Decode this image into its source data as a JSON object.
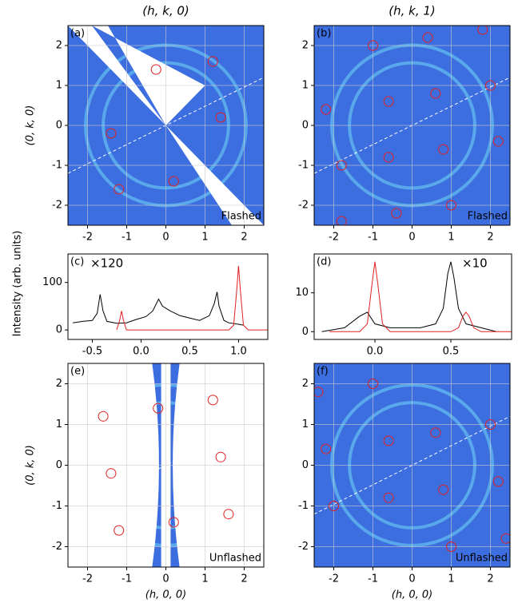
{
  "chart_data": [
    {
      "type": "map",
      "title": "(h, k, 0)",
      "ylabel": "(0, k, 0)",
      "panel": "(a)",
      "annotation": "Flashed",
      "xlim": [
        -2.5,
        2.5
      ],
      "ylim": [
        -2.5,
        2.5
      ],
      "xticks": [
        -2,
        -1,
        0,
        1,
        2
      ],
      "yticks": [
        -2,
        -1,
        0,
        1,
        2
      ],
      "grid": true,
      "color": "#e02020",
      "x": [
        -0.25,
        1.2,
        1.4,
        -1.4,
        0.2,
        -1.2
      ],
      "values": [
        1.4,
        1.6,
        0.2,
        -0.2,
        -1.4,
        -1.6
      ]
    },
    {
      "type": "map",
      "title": "(h, k, 1)",
      "panel": "(b)",
      "annotation": "Flashed",
      "xlim": [
        -2.5,
        2.5
      ],
      "ylim": [
        -2.5,
        2.5
      ],
      "xticks": [
        -2,
        -1,
        0,
        1,
        2
      ],
      "yticks": [
        -2,
        -1,
        0,
        1,
        2
      ],
      "grid": true,
      "color": "#e02020",
      "x": [
        -1,
        0.4,
        1.8,
        2,
        0.6,
        -0.6,
        -2.2,
        2.2,
        0.8,
        -0.6,
        -1.8,
        1,
        -0.4,
        -1.8
      ],
      "values": [
        2,
        2.2,
        2.4,
        1,
        0.8,
        0.6,
        0.4,
        -0.4,
        -0.6,
        -0.8,
        -1,
        -2,
        -2.2,
        -2.4
      ]
    },
    {
      "type": "line",
      "ylabel": "Intensity (arb. units)",
      "panel": "(c)",
      "annotation": "×120",
      "xlim": [
        -0.75,
        1.3
      ],
      "ylim": [
        -20,
        160
      ],
      "xticks": [
        -0.5,
        {
          "value": 0,
          "label": "0.0"
        },
        0.5,
        {
          "value": 1,
          "label": "1.0"
        }
      ],
      "yticks": [
        0,
        100
      ],
      "series": [
        {
          "color": "#000000",
          "x": [
            -0.7,
            -0.6,
            -0.5,
            -0.45,
            -0.42,
            -0.39,
            -0.35,
            -0.25,
            -0.15,
            -0.05,
            0.05,
            0.12,
            0.18,
            0.22,
            0.3,
            0.4,
            0.5,
            0.6,
            0.7,
            0.75,
            0.78,
            0.8,
            0.85,
            0.9,
            1.0,
            1.05
          ],
          "values": [
            15,
            18,
            20,
            35,
            75,
            40,
            18,
            14,
            15,
            22,
            28,
            40,
            65,
            50,
            40,
            30,
            25,
            20,
            30,
            55,
            80,
            50,
            20,
            15,
            12,
            10
          ]
        },
        {
          "color": "#e02020",
          "x": [
            -0.25,
            -0.22,
            -0.2,
            -0.18,
            -0.15,
            0,
            0.5,
            0.9,
            0.95,
            0.98,
            1.0,
            1.02,
            1.05,
            1.1,
            1.3
          ],
          "values": [
            0,
            20,
            40,
            20,
            0,
            0,
            0,
            0,
            10,
            80,
            135,
            80,
            10,
            0,
            0
          ]
        }
      ]
    },
    {
      "type": "line",
      "panel": "(d)",
      "annotation": "×10",
      "xlim": [
        -0.4,
        0.9
      ],
      "ylim": [
        -2,
        20
      ],
      "xticks": [
        {
          "value": 0,
          "label": "0.0"
        },
        0.5
      ],
      "yticks": [
        0,
        10
      ],
      "series": [
        {
          "color": "#000000",
          "x": [
            -0.35,
            -0.2,
            -0.1,
            -0.05,
            0,
            0.1,
            0.2,
            0.3,
            0.4,
            0.45,
            0.48,
            0.5,
            0.52,
            0.55,
            0.6,
            0.7,
            0.8
          ],
          "values": [
            0,
            1,
            4,
            5,
            2,
            1,
            1,
            1,
            2,
            6,
            15,
            18,
            14,
            6,
            2,
            1,
            0
          ]
        },
        {
          "color": "#e02020",
          "x": [
            -0.3,
            -0.1,
            -0.05,
            -0.02,
            0,
            0.02,
            0.05,
            0.1,
            0.5,
            0.55,
            0.58,
            0.6,
            0.62,
            0.65,
            0.7,
            0.9
          ],
          "values": [
            0,
            0,
            2,
            12,
            18,
            12,
            2,
            0,
            0,
            1,
            4,
            5,
            4,
            1,
            0,
            0
          ]
        }
      ]
    },
    {
      "type": "map",
      "ylabel": "(0, k, 0)",
      "xlabel": "(h, 0, 0)",
      "panel": "(e)",
      "annotation": "Unflashed",
      "xlim": [
        -2.5,
        2.5
      ],
      "ylim": [
        -2.5,
        2.5
      ],
      "xticks": [
        -2,
        -1,
        0,
        1,
        2
      ],
      "yticks": [
        -2,
        -1,
        0,
        1,
        2
      ],
      "grid": true,
      "color": "#e02020",
      "x": [
        -1.6,
        -0.2,
        1.2,
        1.4,
        -1.4,
        0.2,
        1.6,
        -1.2
      ],
      "values": [
        1.2,
        1.4,
        1.6,
        0.2,
        -0.2,
        -1.4,
        -1.2,
        -1.6
      ]
    },
    {
      "type": "map",
      "xlabel": "(h, 0, 0)",
      "panel": "(f)",
      "annotation": "Unflashed",
      "xlim": [
        -2.5,
        2.5
      ],
      "ylim": [
        -2.5,
        2.5
      ],
      "xticks": [
        -2,
        -1,
        0,
        1,
        2
      ],
      "yticks": [
        -2,
        -1,
        0,
        1,
        2
      ],
      "grid": true,
      "color": "#e02020",
      "x": [
        -2.4,
        -1,
        0.6,
        -0.6,
        -2.2,
        2,
        2.2,
        0.8,
        -0.6,
        -2,
        1,
        2.4
      ],
      "values": [
        1.8,
        2,
        0.8,
        0.6,
        0.4,
        1,
        -0.4,
        -0.6,
        -0.8,
        -1,
        -2,
        -1.8
      ]
    }
  ]
}
